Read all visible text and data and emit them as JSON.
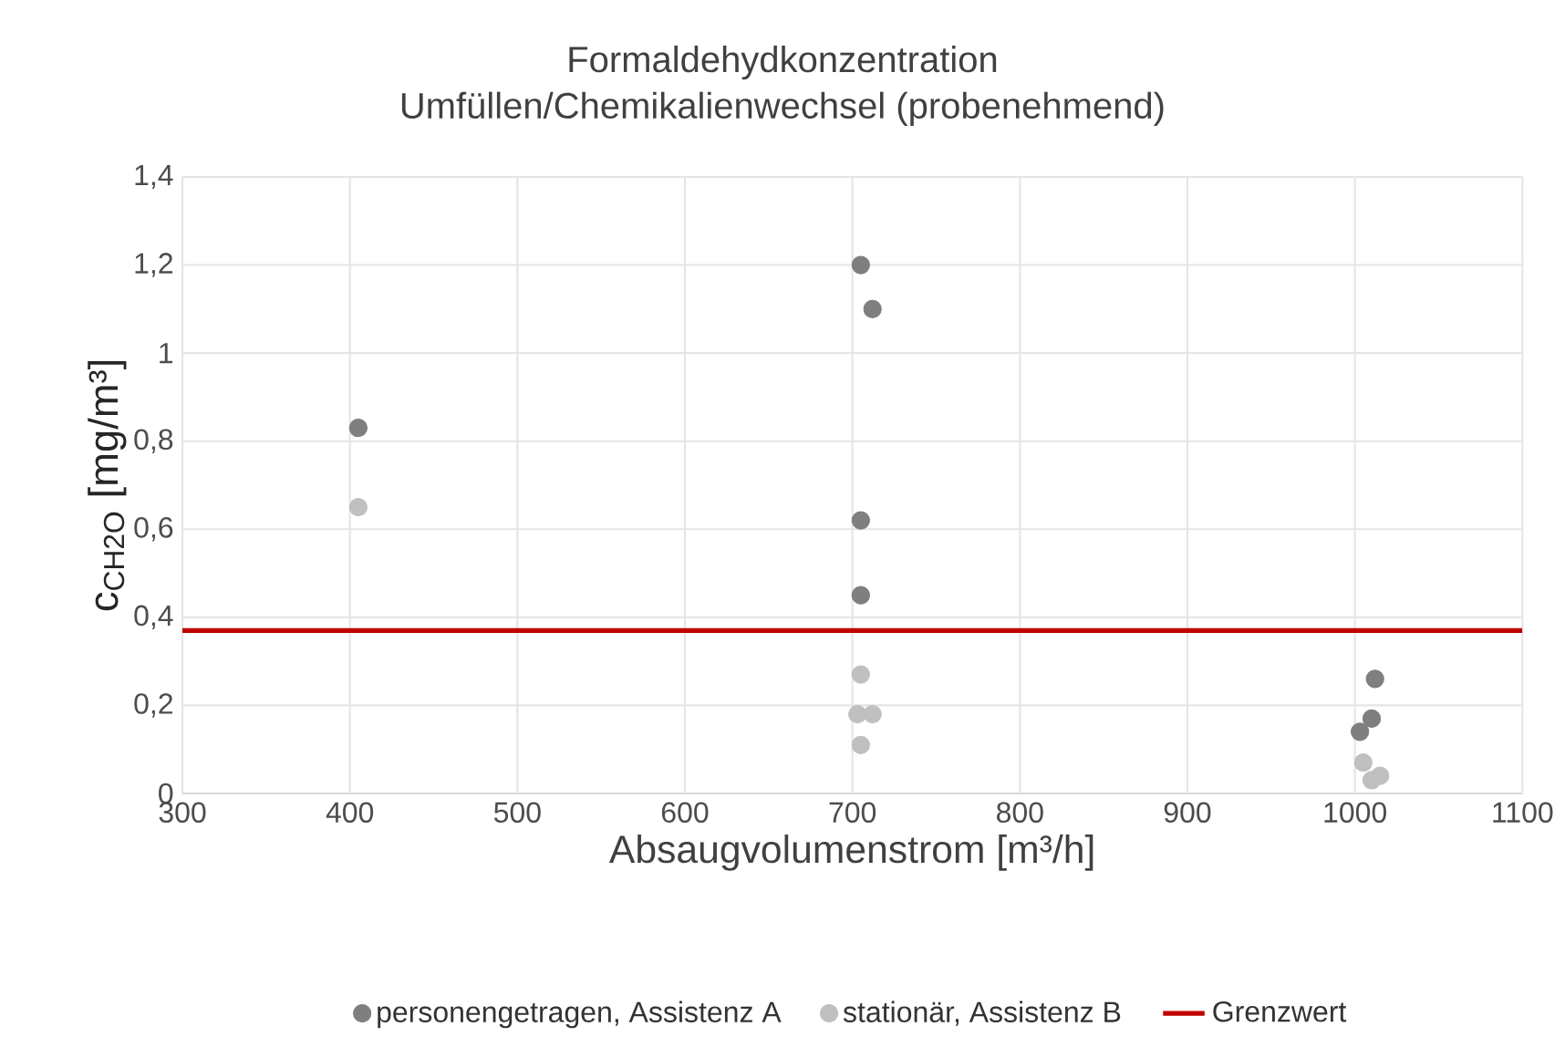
{
  "chart_data": {
    "type": "scatter",
    "title": "Formaldehydkonzentration\nUmfüllen/Chemikalienwechsel (probenehmend)",
    "xlabel": "Absaugvolumenstrom [m³/h]",
    "ylabel": "c$_{CH2O}$ [mg/m³]",
    "xlim": [
      300,
      1100
    ],
    "xticks": [
      300,
      400,
      500,
      600,
      700,
      800,
      900,
      1000,
      1100
    ],
    "ylim": [
      0,
      1.4
    ],
    "yticks": [
      0,
      {
        "value": 0.2,
        "label": "0,2"
      },
      {
        "value": 0.4,
        "label": "0,4"
      },
      {
        "value": 0.6,
        "label": "0,6"
      },
      {
        "value": 0.8,
        "label": "0,8"
      },
      1,
      {
        "value": 1.2,
        "label": "1,2"
      },
      {
        "value": 1.4,
        "label": "1,4"
      }
    ],
    "grid": true,
    "legend": "bottom",
    "marker": "circle",
    "series": [
      {
        "name": "personengetragen, Assistenz A",
        "color": "#7f7f7f",
        "x": [
          405,
          705,
          712,
          705,
          705,
          1012,
          1010,
          1003
        ],
        "values": [
          0.83,
          1.2,
          1.1,
          0.62,
          0.45,
          0.26,
          0.17,
          0.14
        ]
      },
      {
        "name": "stationär, Assistenz B",
        "color": "#c0c0c0",
        "x": [
          405,
          705,
          703,
          712,
          705,
          1005,
          1010,
          1015
        ],
        "values": [
          0.65,
          0.27,
          0.18,
          0.18,
          0.11,
          0.07,
          0.03,
          0.04
        ]
      }
    ],
    "ref_lines": [
      {
        "axis": "y",
        "value": 0.37,
        "label": "Grenzwert",
        "color": "#c00000",
        "line_style": "solid"
      }
    ]
  }
}
